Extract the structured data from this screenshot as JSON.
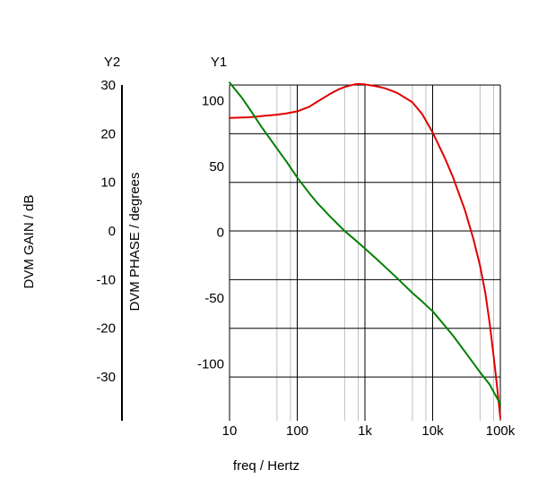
{
  "chart_data": {
    "type": "line",
    "xlabel": "freq / Hertz",
    "xscale": "log",
    "xlim": [
      10,
      100000
    ],
    "x_ticks": [
      10,
      100,
      1000,
      10000,
      100000
    ],
    "x_tick_labels": [
      "10",
      "100",
      "1k",
      "10k",
      "100k"
    ],
    "grid": true,
    "y1": {
      "header": "Y1",
      "label": "DVM PHASE / degrees",
      "ylim": [
        -135,
        120
      ],
      "ticks": [
        100,
        50,
        0,
        -50,
        -100
      ],
      "tick_labels": [
        "100",
        "50",
        "0",
        "-50",
        "-100"
      ]
    },
    "y2": {
      "header": "Y2",
      "label": "DVM GAIN / dB",
      "ylim": [
        -39,
        30
      ],
      "ticks": [
        30,
        20,
        10,
        0,
        -10,
        -20,
        -30
      ],
      "tick_labels": [
        "30",
        "20",
        "10",
        "0",
        "-10",
        "-20",
        "-30"
      ]
    },
    "series": [
      {
        "axis": "y1",
        "color": "#e00000",
        "x": [
          10,
          20,
          30,
          50,
          70,
          100,
          150,
          200,
          300,
          400,
          500,
          700,
          800,
          1000,
          1500,
          2000,
          3000,
          5000,
          7000,
          10000,
          15000,
          20000,
          30000,
          40000,
          50000,
          60000,
          70000,
          80000,
          90000,
          100000
        ],
        "y": [
          95,
          95.5,
          96.5,
          97.5,
          98.5,
          100,
          103.5,
          107.5,
          113,
          116.5,
          118.5,
          120.5,
          120.9,
          120.5,
          119,
          117.5,
          114,
          107,
          98,
          84,
          65,
          50,
          25,
          3,
          -17,
          -38,
          -62,
          -87,
          -110,
          -133
        ]
      },
      {
        "axis": "y2",
        "color": "#008000",
        "x": [
          10,
          15,
          20,
          30,
          50,
          70,
          100,
          150,
          200,
          300,
          500,
          700,
          1000,
          1500,
          2000,
          3000,
          5000,
          7000,
          10000,
          15000,
          20000,
          30000,
          50000,
          70000,
          100000
        ],
        "y": [
          30.5,
          27.5,
          25,
          21.3,
          17,
          14.2,
          11,
          7.8,
          5.7,
          3.1,
          0,
          -1.7,
          -3.6,
          -5.8,
          -7.4,
          -9.7,
          -12.7,
          -14.5,
          -16.5,
          -19.4,
          -21.5,
          -24.8,
          -29,
          -31.6,
          -35.6
        ]
      }
    ]
  }
}
